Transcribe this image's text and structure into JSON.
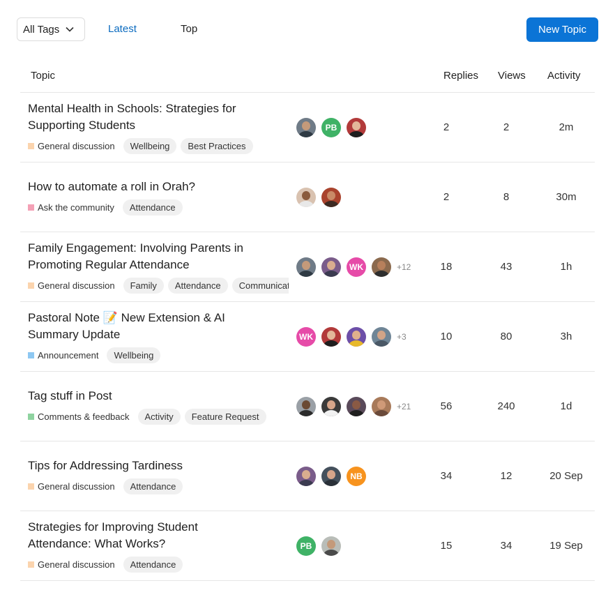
{
  "toolbar": {
    "tags_label": "All Tags",
    "latest_label": "Latest",
    "top_label": "Top",
    "new_topic_label": "New Topic"
  },
  "columns": {
    "topic": "Topic",
    "replies": "Replies",
    "views": "Views",
    "activity": "Activity"
  },
  "colors": {
    "accent": "#0b74d6",
    "link": "#0b6bbf"
  },
  "topics": [
    {
      "title": "Mental Health in Schools: Strategies for Supporting Students",
      "category": "General discussion",
      "category_color": "#fbd4ae",
      "tags": [
        "Wellbeing",
        "Best Practices"
      ],
      "avatars": [
        {
          "type": "photo",
          "bg": "#6f7b87",
          "skin": "#c49a7a",
          "shirt": "#2f3a44"
        },
        {
          "type": "initials",
          "text": "PB",
          "bg": "#3fb266"
        },
        {
          "type": "photo",
          "bg": "#b23a3a",
          "skin": "#e3b89a",
          "shirt": "#1e1e1e"
        }
      ],
      "more": "",
      "replies": "2",
      "views": "2",
      "activity": "2m"
    },
    {
      "title": "How to automate a roll in Orah?",
      "category": "Ask the community",
      "category_color": "#f4a1b6",
      "tags": [
        "Attendance"
      ],
      "avatars": [
        {
          "type": "photo",
          "bg": "#d9c2b0",
          "skin": "#8a5a3c",
          "shirt": "#e8e8e8"
        },
        {
          "type": "photo",
          "bg": "#a9432d",
          "skin": "#c98a66",
          "shirt": "#3d2a22"
        }
      ],
      "more": "",
      "replies": "2",
      "views": "8",
      "activity": "30m"
    },
    {
      "title": "Family Engagement: Involving Parents in Promoting Regular Attendance",
      "category": "General discussion",
      "category_color": "#fbd4ae",
      "tags": [
        "Family",
        "Attendance",
        "Communication"
      ],
      "avatars": [
        {
          "type": "photo",
          "bg": "#6f7b87",
          "skin": "#c49a7a",
          "shirt": "#2f3a44"
        },
        {
          "type": "photo",
          "bg": "#7a5c8a",
          "skin": "#d9ad8f",
          "shirt": "#3b3b50"
        },
        {
          "type": "initials",
          "text": "WK",
          "bg": "#e64ba8"
        },
        {
          "type": "photo",
          "bg": "#8b6a4e",
          "skin": "#b7805c",
          "shirt": "#2e2e2e"
        }
      ],
      "more": "+12",
      "replies": "18",
      "views": "43",
      "activity": "1h"
    },
    {
      "title": "Pastoral Note 📝 New Extension & AI Summary Update",
      "category": "Announcement",
      "category_color": "#8ec8f2",
      "tags": [
        "Wellbeing"
      ],
      "avatars": [
        {
          "type": "initials",
          "text": "WK",
          "bg": "#e64ba8"
        },
        {
          "type": "photo",
          "bg": "#b23a3a",
          "skin": "#e3b89a",
          "shirt": "#1e1e1e"
        },
        {
          "type": "photo",
          "bg": "#6d4fa8",
          "skin": "#e0b08c",
          "shirt": "#e8b92a"
        },
        {
          "type": "photo",
          "bg": "#6f8596",
          "skin": "#d2a487",
          "shirt": "#4a5866"
        }
      ],
      "more": "+3",
      "replies": "10",
      "views": "80",
      "activity": "3h"
    },
    {
      "title": "Tag stuff in Post",
      "category": "Comments & feedback",
      "category_color": "#8fd3a0",
      "tags": [
        "Activity",
        "Feature Request"
      ],
      "avatars": [
        {
          "type": "photo",
          "bg": "#9aa0a6",
          "skin": "#6b4a34",
          "shirt": "#2b2b2b"
        },
        {
          "type": "photo",
          "bg": "#3a3a3a",
          "skin": "#d6a58a",
          "shirt": "#f2f2f2"
        },
        {
          "type": "photo",
          "bg": "#5a4a5a",
          "skin": "#8a5a44",
          "shirt": "#1f1f1f"
        },
        {
          "type": "photo",
          "bg": "#a87a5a",
          "skin": "#cf9a78",
          "shirt": "#6a4a3a"
        }
      ],
      "more": "+21",
      "replies": "56",
      "views": "240",
      "activity": "1d"
    },
    {
      "title": "Tips for Addressing Tardiness",
      "category": "General discussion",
      "category_color": "#fbd4ae",
      "tags": [
        "Attendance"
      ],
      "avatars": [
        {
          "type": "photo",
          "bg": "#7a5c8a",
          "skin": "#d9ad8f",
          "shirt": "#3b3b50"
        },
        {
          "type": "photo",
          "bg": "#44505c",
          "skin": "#d6a58a",
          "shirt": "#2a3038"
        },
        {
          "type": "initials",
          "text": "NB",
          "bg": "#f7931e"
        }
      ],
      "more": "",
      "replies": "34",
      "views": "12",
      "activity": "20 Sep"
    },
    {
      "title": "Strategies for Improving Student Attendance: What Works?",
      "category": "General discussion",
      "category_color": "#fbd4ae",
      "tags": [
        "Attendance"
      ],
      "avatars": [
        {
          "type": "initials",
          "text": "PB",
          "bg": "#3fb266"
        },
        {
          "type": "photo",
          "bg": "#b9bdb8",
          "skin": "#c49a7a",
          "shirt": "#4a4a4a"
        }
      ],
      "more": "",
      "replies": "15",
      "views": "34",
      "activity": "19 Sep"
    }
  ]
}
